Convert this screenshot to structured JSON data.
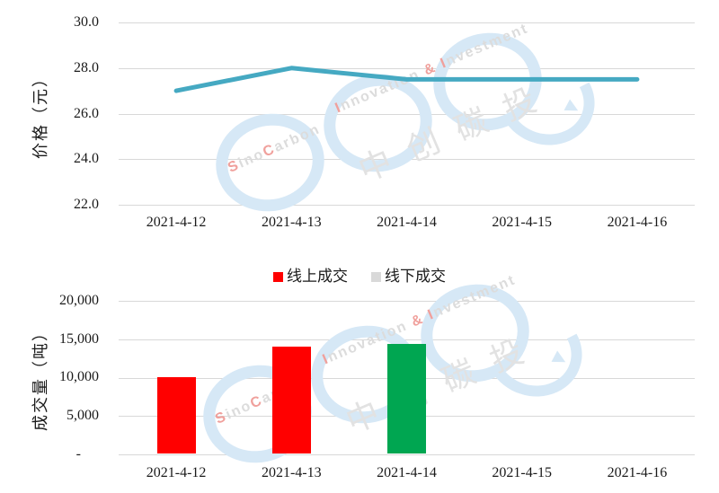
{
  "chart_data": [
    {
      "type": "line",
      "ylabel": "价格（元）",
      "ylim": [
        22.0,
        30.0
      ],
      "yticks": [
        "30.0",
        "28.0",
        "26.0",
        "24.0",
        "22.0"
      ],
      "x": [
        "2021-4-12",
        "2021-4-13",
        "2021-4-14",
        "2021-4-15",
        "2021-4-16"
      ],
      "grid": true,
      "legend": false,
      "series": [
        {
          "name": "价格",
          "color": "#45a9c2",
          "values": [
            27.0,
            28.0,
            27.5,
            27.5,
            27.5
          ]
        }
      ]
    },
    {
      "type": "bar",
      "ylabel": "成交量（吨）",
      "ylim": [
        0,
        20000
      ],
      "yticks": [
        "20,000",
        "15,000",
        "10,000",
        "5,000",
        "-"
      ],
      "grid": true,
      "legend_position": "top",
      "legend": [
        {
          "label": "线上成交",
          "color": "#ff0000"
        },
        {
          "label": "线下成交",
          "color": "#d9d9d9"
        }
      ],
      "bars": [
        {
          "date": "2021-4-12",
          "value": 10000,
          "color": "#ff0000"
        },
        {
          "date": "2021-4-13",
          "value": 13900,
          "color": "#ff0000"
        },
        {
          "date": "2021-4-14",
          "value": 14300,
          "color": "#00a651"
        },
        {
          "date": "2021-4-15",
          "value": 0,
          "color": null
        },
        {
          "date": "2021-4-16",
          "value": 0,
          "color": null
        }
      ]
    }
  ],
  "watermark": {
    "red": "#f0a09c",
    "gray": "#dcdcdc",
    "line1": [
      [
        "S",
        "red"
      ],
      [
        "ino",
        "gray"
      ],
      [
        "C",
        "red"
      ],
      [
        "arbon",
        "gray"
      ]
    ],
    "line2": [
      [
        "I",
        "red"
      ],
      [
        "nnovation ",
        "gray"
      ],
      [
        "&",
        "red"
      ],
      [
        " ",
        "gray"
      ],
      [
        "I",
        "red"
      ],
      [
        "nvestment",
        "gray"
      ]
    ],
    "cn": "中创碳投"
  }
}
